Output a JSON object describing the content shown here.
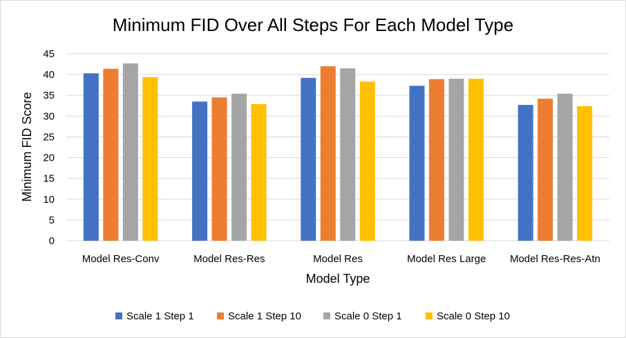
{
  "chart_data": {
    "type": "bar",
    "title": "Minimum FID Over All Steps For Each Model Type",
    "xlabel": "Model Type",
    "ylabel": "Minimum FID Score",
    "categories": [
      "Model Res-Conv",
      "Model Res-Res",
      "Model Res",
      "Model Res Large",
      "Model Res-Res-Atn"
    ],
    "series": [
      {
        "name": "Scale 1 Step 1",
        "color": "#4472C4",
        "values": [
          40.3,
          33.5,
          39.2,
          37.3,
          32.7
        ]
      },
      {
        "name": "Scale 1 Step 10",
        "color": "#ED7D31",
        "values": [
          41.4,
          34.5,
          42.0,
          38.9,
          34.2
        ]
      },
      {
        "name": "Scale 0 Step 1",
        "color": "#A5A5A5",
        "values": [
          42.7,
          35.4,
          41.5,
          39.0,
          35.4
        ]
      },
      {
        "name": "Scale 0 Step 10",
        "color": "#FFC000",
        "values": [
          39.4,
          32.9,
          38.3,
          39.0,
          32.4
        ]
      }
    ],
    "ylim": [
      0,
      45
    ],
    "yticks": [
      "0",
      "5",
      "10",
      "15",
      "20",
      "25",
      "30",
      "35",
      "40",
      "45"
    ],
    "grid": true,
    "legend_position": "bottom"
  }
}
